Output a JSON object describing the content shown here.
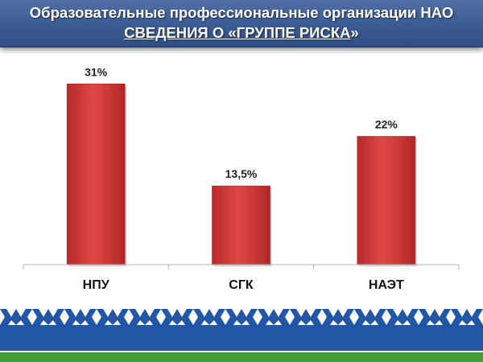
{
  "header": {
    "title_line1": "Образовательные профессиональные организации НАО",
    "title_line2": "СВЕДЕНИЯ О «ГРУППЕ РИСКА",
    "title_line2_end": "»"
  },
  "chart_data": {
    "type": "bar",
    "title": "",
    "xlabel": "",
    "ylabel": "",
    "categories": [
      "НПУ",
      "СГК",
      "НАЭТ"
    ],
    "values": [
      31,
      13.5,
      22
    ],
    "data_labels": [
      "31%",
      "13,5%",
      "22%"
    ],
    "ylim": [
      0,
      32
    ],
    "grid": false,
    "legend": "none",
    "bar_color": "#d13a3a"
  },
  "colors": {
    "header_blue": "#3b5b93",
    "ornament_blue": "#2456a6",
    "ornament_white": "#ffffff",
    "ornament_green": "#3f9e35"
  }
}
